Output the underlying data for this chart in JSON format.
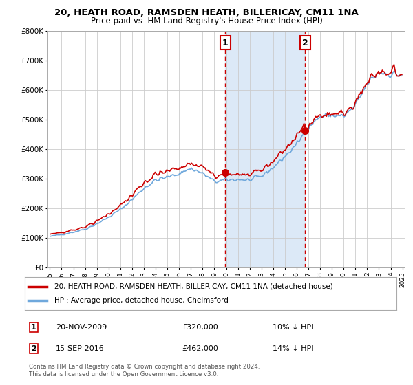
{
  "title1": "20, HEATH ROAD, RAMSDEN HEATH, BILLERICAY, CM11 1NA",
  "title2": "Price paid vs. HM Land Registry's House Price Index (HPI)",
  "legend_line1": "20, HEATH ROAD, RAMSDEN HEATH, BILLERICAY, CM11 1NA (detached house)",
  "legend_line2": "HPI: Average price, detached house, Chelmsford",
  "annotation1_label": "1",
  "annotation1_date": "20-NOV-2009",
  "annotation1_price": "£320,000",
  "annotation1_hpi": "10% ↓ HPI",
  "annotation2_label": "2",
  "annotation2_date": "15-SEP-2016",
  "annotation2_price": "£462,000",
  "annotation2_hpi": "14% ↓ HPI",
  "footnote1": "Contains HM Land Registry data © Crown copyright and database right 2024.",
  "footnote2": "This data is licensed under the Open Government Licence v3.0.",
  "hpi_color": "#6fa8dc",
  "price_color": "#cc0000",
  "dashed_color": "#cc0000",
  "background_color": "#ffffff",
  "shaded_color": "#dce9f7",
  "ylim": [
    0,
    800000
  ],
  "sale1_x": 2009.917,
  "sale1_y": 320000,
  "sale2_x": 2016.708,
  "sale2_y": 462000,
  "xmin": 1995.0,
  "xmax": 2025.0
}
